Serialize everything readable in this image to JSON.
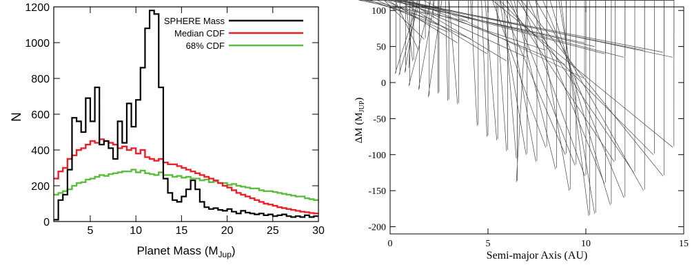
{
  "chart_data": [
    {
      "type": "line",
      "xlabel": {
        "main": "Planet Mass (M",
        "sub": "Jup",
        "close": ")"
      },
      "ylabel": "N",
      "xlim": [
        1,
        30
      ],
      "ylim": [
        0,
        1200
      ],
      "xticks": [
        5,
        10,
        15,
        20,
        25,
        30
      ],
      "yticks": [
        0,
        200,
        400,
        600,
        800,
        1000,
        1200
      ],
      "legend_position": "top-right",
      "colors": {
        "SPHERE Mass": "#000000",
        "Median CDF": "#e8212b",
        "68% CDF": "#5bbd3c"
      },
      "series": [
        {
          "name": "SPHERE Mass",
          "x": [
            1.0,
            1.5,
            2.0,
            2.5,
            3.0,
            3.5,
            4.0,
            4.5,
            5.0,
            5.5,
            6.0,
            6.5,
            7.0,
            7.5,
            8.0,
            8.5,
            9.0,
            9.5,
            10.0,
            10.5,
            11.0,
            11.5,
            12.0,
            12.5,
            13.0,
            13.5,
            14.0,
            14.5,
            15.0,
            15.5,
            16.0,
            16.5,
            17.0,
            17.5,
            18.0,
            18.5,
            19.0,
            19.5,
            20.0,
            20.5,
            21.0,
            21.5,
            22.0,
            22.5,
            23.0,
            23.5,
            24.0,
            24.5,
            25.0,
            25.5,
            26.0,
            26.5,
            27.0,
            27.5,
            28.0,
            28.5,
            29.0,
            29.5
          ],
          "values": [
            10,
            120,
            150,
            290,
            580,
            560,
            500,
            690,
            560,
            750,
            430,
            450,
            410,
            350,
            560,
            440,
            660,
            530,
            680,
            860,
            1080,
            1180,
            1160,
            750,
            240,
            160,
            120,
            110,
            140,
            180,
            230,
            180,
            110,
            80,
            70,
            75,
            65,
            60,
            70,
            55,
            45,
            60,
            50,
            45,
            40,
            45,
            35,
            40,
            30,
            35,
            40,
            30,
            25,
            30,
            25,
            35,
            25,
            30
          ]
        },
        {
          "name": "Median CDF",
          "x": [
            1.0,
            1.5,
            2.0,
            2.5,
            3.0,
            3.5,
            4.0,
            4.5,
            5.0,
            5.5,
            6.0,
            6.5,
            7.0,
            7.5,
            8.0,
            8.5,
            9.0,
            9.5,
            10.0,
            10.5,
            11.0,
            11.5,
            12.0,
            12.5,
            13.0,
            13.5,
            14.0,
            14.5,
            15.0,
            15.5,
            16.0,
            16.5,
            17.0,
            17.5,
            18.0,
            18.5,
            19.0,
            19.5,
            20.0,
            20.5,
            21.0,
            21.5,
            22.0,
            22.5,
            23.0,
            23.5,
            24.0,
            24.5,
            25.0,
            25.5,
            26.0,
            26.5,
            27.0,
            27.5,
            28.0,
            28.5,
            29.0,
            29.5
          ],
          "values": [
            240,
            280,
            300,
            350,
            370,
            400,
            410,
            430,
            450,
            440,
            460,
            450,
            440,
            430,
            410,
            420,
            400,
            410,
            380,
            400,
            360,
            350,
            340,
            350,
            330,
            320,
            320,
            310,
            300,
            290,
            280,
            270,
            260,
            250,
            240,
            230,
            215,
            200,
            190,
            175,
            160,
            150,
            140,
            130,
            120,
            110,
            100,
            95,
            88,
            80,
            75,
            70,
            65,
            60,
            55,
            52,
            48,
            45
          ]
        },
        {
          "name": "68% CDF",
          "x": [
            1.0,
            1.5,
            2.0,
            2.5,
            3.0,
            3.5,
            4.0,
            4.5,
            5.0,
            5.5,
            6.0,
            6.5,
            7.0,
            7.5,
            8.0,
            8.5,
            9.0,
            9.5,
            10.0,
            10.5,
            11.0,
            11.5,
            12.0,
            12.5,
            13.0,
            13.5,
            14.0,
            14.5,
            15.0,
            15.5,
            16.0,
            16.5,
            17.0,
            17.5,
            18.0,
            18.5,
            19.0,
            19.5,
            20.0,
            20.5,
            21.0,
            21.5,
            22.0,
            22.5,
            23.0,
            23.5,
            24.0,
            24.5,
            25.0,
            25.5,
            26.0,
            26.5,
            27.0,
            27.5,
            28.0,
            28.5,
            29.0,
            29.5
          ],
          "values": [
            150,
            160,
            170,
            180,
            200,
            215,
            220,
            235,
            240,
            250,
            260,
            255,
            265,
            270,
            275,
            280,
            280,
            290,
            275,
            285,
            270,
            265,
            260,
            275,
            260,
            260,
            250,
            255,
            245,
            250,
            240,
            240,
            230,
            235,
            220,
            225,
            215,
            215,
            205,
            210,
            200,
            195,
            190,
            185,
            185,
            175,
            170,
            170,
            165,
            160,
            155,
            150,
            145,
            140,
            140,
            130,
            125,
            120
          ]
        }
      ]
    },
    {
      "type": "scatter",
      "xlabel": "Semi-major Axis (AU)",
      "ylabel": {
        "main": "ΔM (M",
        "sub": "JUP",
        "close": ")"
      },
      "xlim": [
        0,
        15
      ],
      "ylim": [
        -210,
        105
      ],
      "xticks": [
        0,
        5,
        10,
        15
      ],
      "yticks": [
        -200,
        -150,
        -100,
        -50,
        0,
        50,
        100
      ],
      "marker": "triangle",
      "points": [
        [
          0.3,
          12
        ],
        [
          0.5,
          10
        ],
        [
          0.8,
          14
        ],
        [
          1.0,
          20
        ],
        [
          1.2,
          30
        ],
        [
          1.5,
          45
        ],
        [
          1.8,
          60
        ],
        [
          2.0,
          95
        ],
        [
          2.2,
          88
        ],
        [
          2.5,
          80
        ],
        [
          3.0,
          70
        ],
        [
          3.5,
          55
        ],
        [
          4.0,
          85
        ],
        [
          4.2,
          60
        ],
        [
          1.0,
          -5
        ],
        [
          1.5,
          -10
        ],
        [
          2.0,
          -20
        ],
        [
          2.5,
          -15
        ],
        [
          3.0,
          -25
        ],
        [
          3.5,
          -30
        ],
        [
          4.5,
          -60
        ],
        [
          5.0,
          -75
        ],
        [
          5.5,
          -80
        ],
        [
          6.0,
          -95
        ],
        [
          6.5,
          -105
        ],
        [
          7.0,
          -100
        ],
        [
          7.5,
          -110
        ],
        [
          8.0,
          -90
        ],
        [
          8.5,
          -120
        ],
        [
          9.0,
          -100
        ],
        [
          9.5,
          -115
        ],
        [
          10.0,
          -130
        ],
        [
          10.5,
          -182
        ],
        [
          11.0,
          -140
        ],
        [
          11.5,
          -110
        ],
        [
          12.0,
          -160
        ],
        [
          12.5,
          -125
        ],
        [
          13.0,
          -150
        ],
        [
          13.5,
          -100
        ],
        [
          14.0,
          -130
        ],
        [
          14.5,
          -90
        ],
        [
          5.0,
          40
        ],
        [
          6.0,
          30
        ],
        [
          7.0,
          35
        ],
        [
          8.0,
          45
        ],
        [
          9.0,
          25
        ],
        [
          10.0,
          55
        ],
        [
          10.5,
          50
        ],
        [
          11.0,
          40
        ],
        [
          12.0,
          35
        ],
        [
          13.0,
          45
        ],
        [
          14.0,
          42
        ],
        [
          14.5,
          35
        ],
        [
          6.5,
          -138
        ],
        [
          10.2,
          -185
        ],
        [
          9.2,
          -150
        ],
        [
          11.3,
          -170
        ]
      ]
    }
  ]
}
